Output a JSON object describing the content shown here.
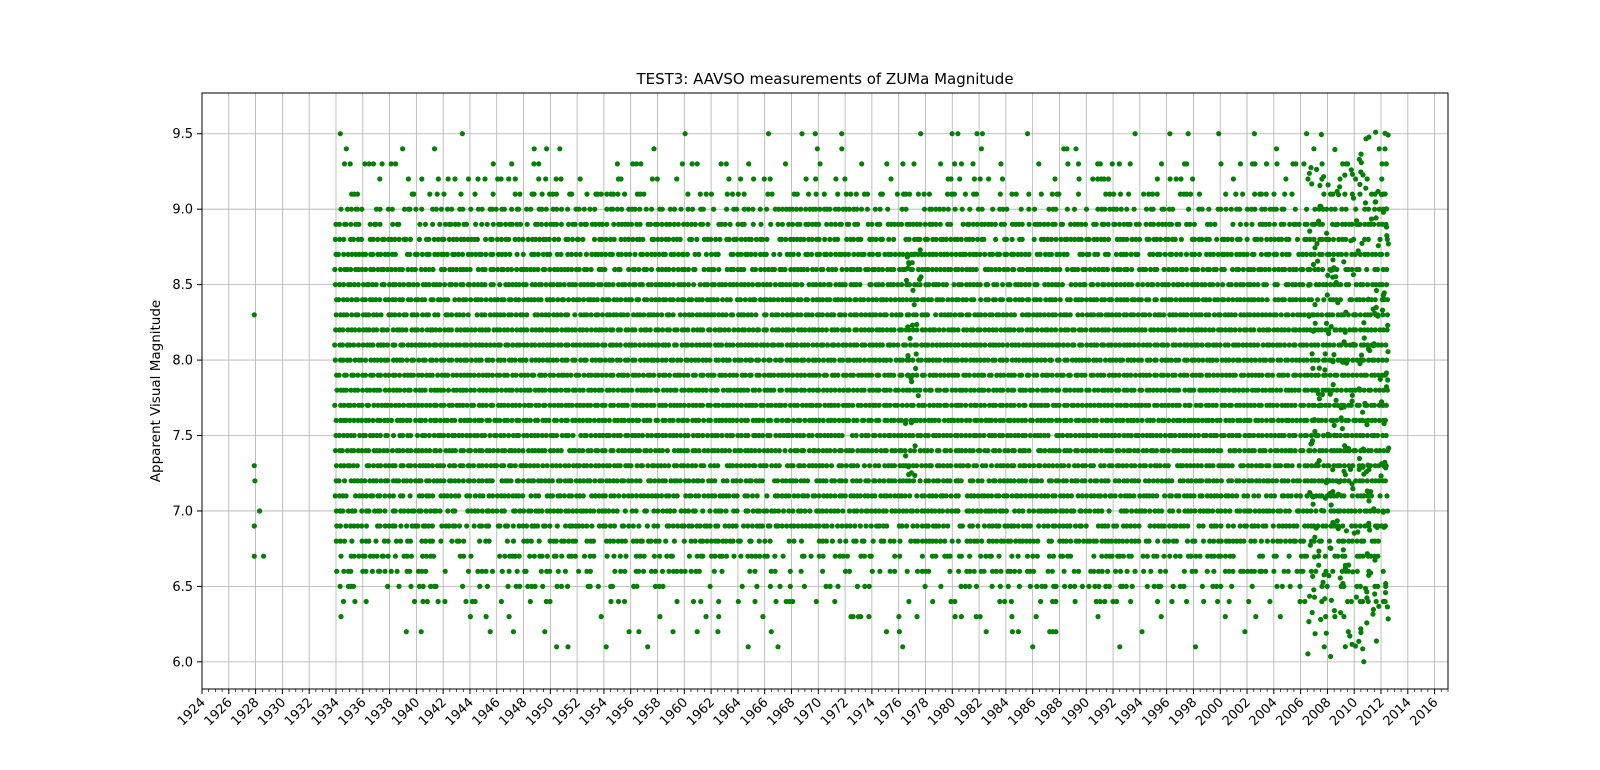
{
  "chart_data": {
    "type": "scatter",
    "title": "TEST3: AAVSO measurements of ZUMa Magnitude",
    "xlabel": "",
    "ylabel": "Apparent Visual Magnitude",
    "xlim": [
      1924,
      2017
    ],
    "ylim": [
      5.82,
      9.77
    ],
    "grid": true,
    "marker_color": "#008000",
    "x_ticks": [
      "1924",
      "1926",
      "1928",
      "1930",
      "1932",
      "1934",
      "1936",
      "1938",
      "1940",
      "1942",
      "1944",
      "1946",
      "1948",
      "1950",
      "1952",
      "1954",
      "1956",
      "1958",
      "1960",
      "1962",
      "1964",
      "1966",
      "1968",
      "1970",
      "1972",
      "1974",
      "1976",
      "1978",
      "1980",
      "1982",
      "1984",
      "1986",
      "1988",
      "1990",
      "1992",
      "1994",
      "1996",
      "1998",
      "2000",
      "2002",
      "2004",
      "2006",
      "2008",
      "2010",
      "2012",
      "2014",
      "2016"
    ],
    "y_ticks": [
      "6.0",
      "6.5",
      "7.0",
      "7.5",
      "8.0",
      "8.5",
      "9.0",
      "9.5"
    ],
    "observation_span": [
      1934.0,
      2012.6
    ],
    "early_points": [
      [
        1927.9,
        8.3
      ],
      [
        1927.9,
        7.3
      ],
      [
        1927.95,
        7.2
      ],
      [
        1927.9,
        6.9
      ],
      [
        1927.9,
        6.7
      ],
      [
        1928.3,
        7.0
      ],
      [
        1928.6,
        6.7
      ]
    ],
    "magnitude_bands": [
      {
        "mag": 6.1,
        "density": 0.04
      },
      {
        "mag": 6.2,
        "density": 0.07
      },
      {
        "mag": 6.3,
        "density": 0.1
      },
      {
        "mag": 6.4,
        "density": 0.22
      },
      {
        "mag": 6.5,
        "density": 0.35
      },
      {
        "mag": 6.6,
        "density": 0.5
      },
      {
        "mag": 6.7,
        "density": 0.6
      },
      {
        "mag": 6.8,
        "density": 0.75
      },
      {
        "mag": 6.9,
        "density": 0.85
      },
      {
        "mag": 7.0,
        "density": 0.9
      },
      {
        "mag": 7.1,
        "density": 0.9
      },
      {
        "mag": 7.2,
        "density": 0.95
      },
      {
        "mag": 7.3,
        "density": 0.95
      },
      {
        "mag": 7.4,
        "density": 0.97
      },
      {
        "mag": 7.5,
        "density": 0.97
      },
      {
        "mag": 7.6,
        "density": 1.0
      },
      {
        "mag": 7.7,
        "density": 1.0
      },
      {
        "mag": 7.8,
        "density": 1.0
      },
      {
        "mag": 7.9,
        "density": 1.0
      },
      {
        "mag": 8.0,
        "density": 1.0
      },
      {
        "mag": 8.1,
        "density": 1.0
      },
      {
        "mag": 8.2,
        "density": 1.0
      },
      {
        "mag": 8.3,
        "density": 0.97
      },
      {
        "mag": 8.4,
        "density": 0.97
      },
      {
        "mag": 8.5,
        "density": 0.95
      },
      {
        "mag": 8.6,
        "density": 0.92
      },
      {
        "mag": 8.7,
        "density": 0.9
      },
      {
        "mag": 8.8,
        "density": 0.85
      },
      {
        "mag": 8.9,
        "density": 0.8
      },
      {
        "mag": 9.0,
        "density": 0.65
      },
      {
        "mag": 9.1,
        "density": 0.4
      },
      {
        "mag": 9.2,
        "density": 0.25
      },
      {
        "mag": 9.3,
        "density": 0.15
      },
      {
        "mag": 9.4,
        "density": 0.08
      },
      {
        "mag": 9.5,
        "density": 0.05
      }
    ],
    "late_scatter_span": [
      2006.5,
      2012.6
    ]
  }
}
